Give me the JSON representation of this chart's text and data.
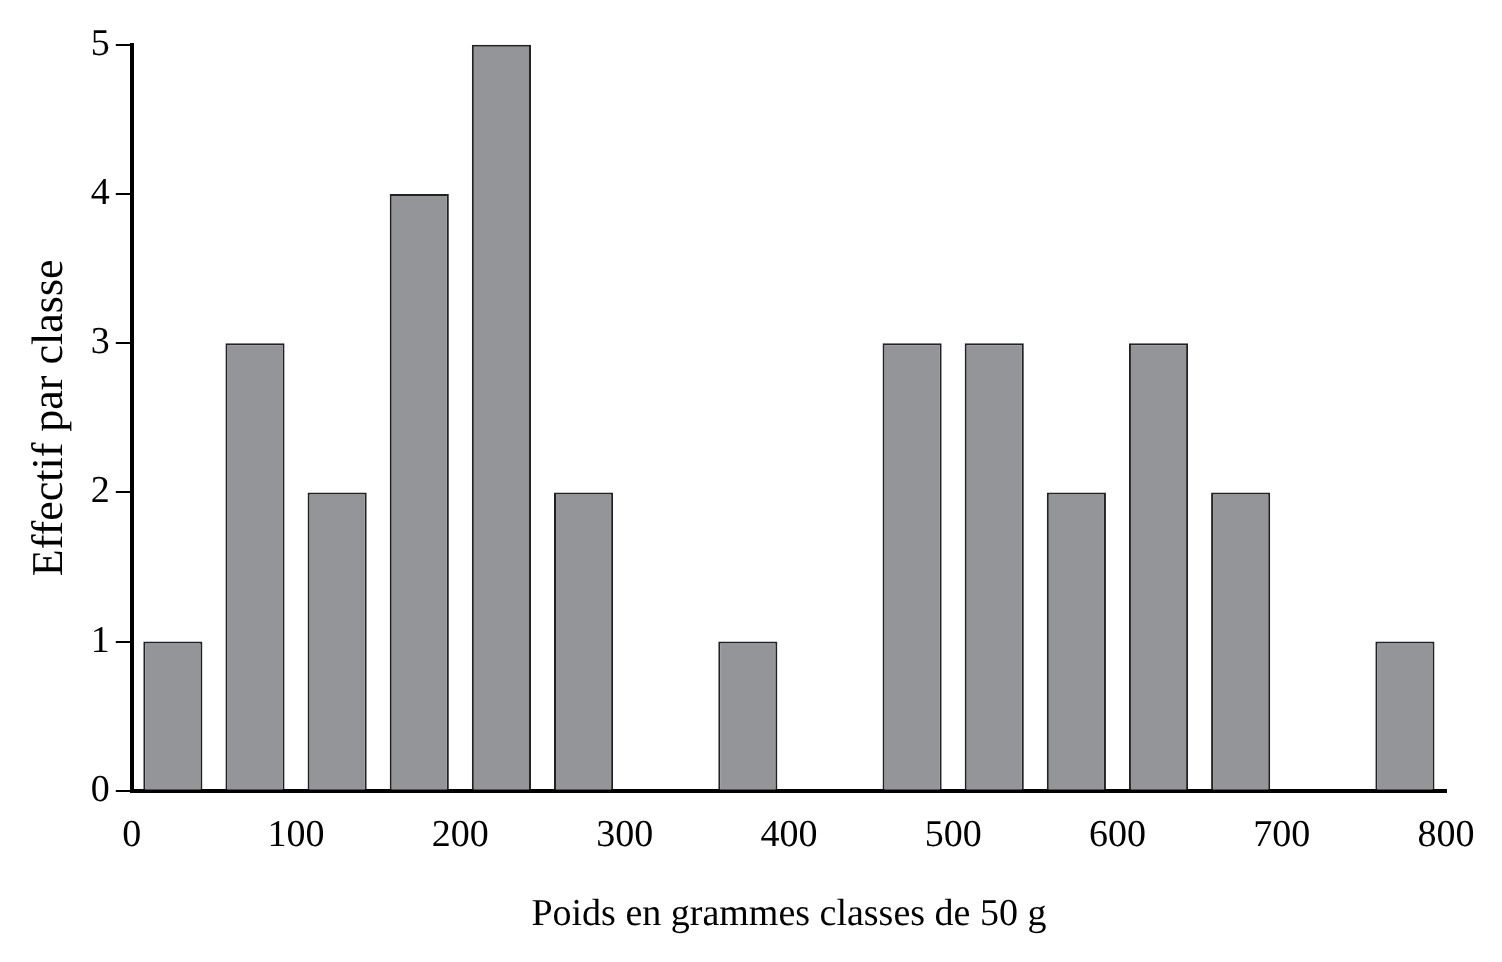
{
  "chart_data": {
    "type": "histogram",
    "xlabel": "Poids en grammes classes de 50 g",
    "ylabel": "Effectif par classe",
    "bins": [
      0,
      50,
      100,
      150,
      200,
      250,
      300,
      350,
      400,
      450,
      500,
      550,
      600,
      650,
      700,
      750,
      800
    ],
    "values": [
      1,
      3,
      2,
      4,
      5,
      2,
      0,
      1,
      0,
      3,
      3,
      2,
      3,
      2,
      0,
      1
    ],
    "color": "#939598",
    "xlim": [
      0,
      800
    ],
    "xticks": [
      0,
      100,
      200,
      300,
      400,
      500,
      600,
      700,
      800
    ],
    "ylim": [
      0,
      5
    ],
    "yticks": [
      0,
      1,
      2,
      3,
      4,
      5
    ],
    "grid": false,
    "legend": false
  }
}
